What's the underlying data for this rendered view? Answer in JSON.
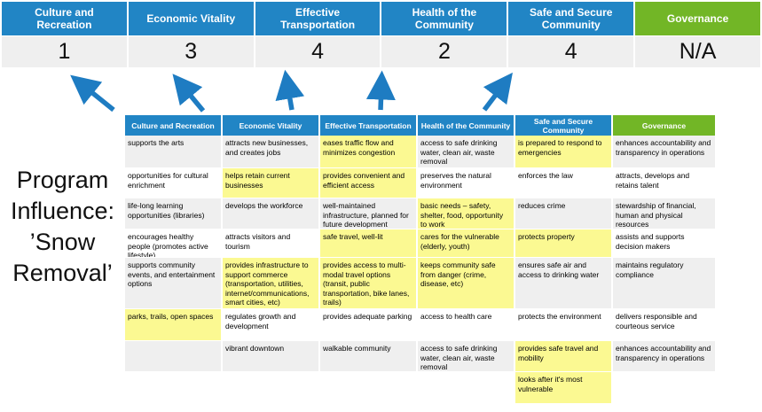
{
  "colors": {
    "header_blue": "#2185C5",
    "header_green": "#72B626",
    "arrow_blue": "#1E7CC2",
    "row_band_gray": "#EFEFEF",
    "highlight_yellow": "#FBF992",
    "score_row_gray": "#EFEFEF"
  },
  "banner": {
    "columns": [
      {
        "label": "Culture and Recreation",
        "score": "1"
      },
      {
        "label": "Economic Vitality",
        "score": "3"
      },
      {
        "label": "Effective Transportation",
        "score": "4"
      },
      {
        "label": "Health of the Community",
        "score": "2"
      },
      {
        "label": "Safe and Secure Community",
        "score": "4"
      },
      {
        "label": "Governance",
        "score": "N/A"
      }
    ]
  },
  "program_label": {
    "lines": [
      "Program",
      "Influence:",
      "’Snow",
      "Removal’"
    ]
  },
  "table": {
    "headers": [
      "Culture and Recreation",
      "Economic Vitality",
      "Effective Transportation",
      "Health of the Community",
      "Safe and Secure Community",
      "Governance"
    ],
    "rows": [
      [
        {
          "t": "supports the arts",
          "h": false
        },
        {
          "t": "attracts new businesses, and creates jobs",
          "h": false
        },
        {
          "t": "eases traffic flow and minimizes congestion",
          "h": true
        },
        {
          "t": "access to safe drinking water, clean air, waste removal",
          "h": false
        },
        {
          "t": "is prepared to respond to emergencies",
          "h": true
        },
        {
          "t": "enhances accountability and transparency in operations",
          "h": false
        }
      ],
      [
        {
          "t": "opportunities for cultural enrichment",
          "h": false
        },
        {
          "t": "helps retain current businesses",
          "h": true
        },
        {
          "t": "provides convenient and efficient access",
          "h": true
        },
        {
          "t": "preserves the natural environment",
          "h": false
        },
        {
          "t": "enforces the law",
          "h": false
        },
        {
          "t": "attracts, develops and retains talent",
          "h": false
        }
      ],
      [
        {
          "t": "life-long learning opportunities (libraries)",
          "h": false
        },
        {
          "t": "develops the workforce",
          "h": false
        },
        {
          "t": "well-maintained infrastructure, planned for future development",
          "h": false
        },
        {
          "t": "basic needs – safety, shelter, food, opportunity to work",
          "h": true
        },
        {
          "t": "reduces crime",
          "h": false
        },
        {
          "t": "stewardship of financial, human and physical resources",
          "h": false
        }
      ],
      [
        {
          "t": "encourages healthy people (promotes active lifestyle)",
          "h": false
        },
        {
          "t": "attracts visitors and tourism",
          "h": false
        },
        {
          "t": "safe travel, well-lit",
          "h": true
        },
        {
          "t": "cares for the vulnerable (elderly, youth)",
          "h": true
        },
        {
          "t": "protects property",
          "h": true
        },
        {
          "t": "assists and supports decision makers",
          "h": false
        }
      ],
      [
        {
          "t": "supports community events, and entertainment options",
          "h": false
        },
        {
          "t": "provides infrastructure to support commerce (transportation, utilities, internet/communications, smart cities, etc)",
          "h": true
        },
        {
          "t": "provides access to multi-modal travel options (transit, public transportation, bike lanes, trails)",
          "h": true
        },
        {
          "t": "keeps community safe from danger (crime, disease, etc)",
          "h": true
        },
        {
          "t": "ensures safe air and access to drinking water",
          "h": false
        },
        {
          "t": "maintains regulatory compliance",
          "h": false
        }
      ],
      [
        {
          "t": "parks, trails, open spaces",
          "h": true
        },
        {
          "t": "regulates growth and development",
          "h": false
        },
        {
          "t": "provides adequate parking",
          "h": false
        },
        {
          "t": "access to health care",
          "h": false
        },
        {
          "t": "protects the environment",
          "h": false
        },
        {
          "t": "delivers responsible and courteous service",
          "h": false
        }
      ],
      [
        {
          "t": "",
          "h": false
        },
        {
          "t": "vibrant downtown",
          "h": false
        },
        {
          "t": "walkable community",
          "h": false
        },
        {
          "t": "access to safe drinking water, clean air, waste removal",
          "h": false
        },
        {
          "t": "provides safe travel and mobility",
          "h": true
        },
        {
          "t": "enhances accountability and transparency in operations",
          "h": false
        }
      ],
      [
        {
          "t": "",
          "h": false
        },
        {
          "t": "",
          "h": false
        },
        {
          "t": "",
          "h": false
        },
        {
          "t": "",
          "h": false
        },
        {
          "t": "looks after it's most vulnerable",
          "h": true
        },
        {
          "t": "",
          "h": false
        }
      ]
    ]
  }
}
